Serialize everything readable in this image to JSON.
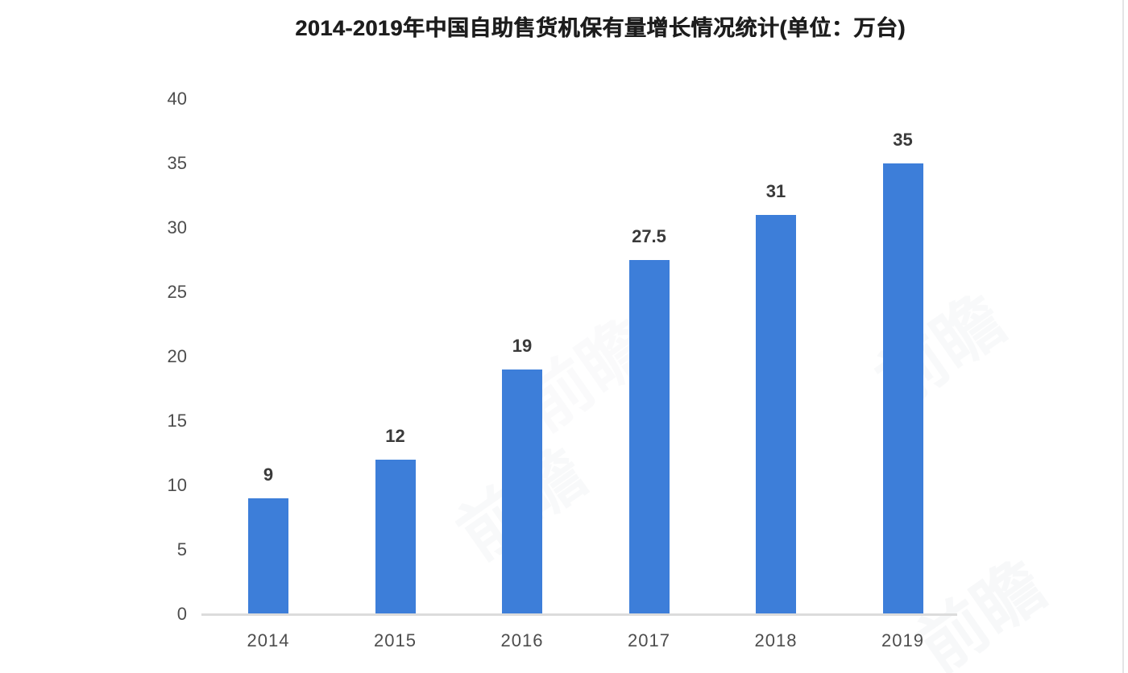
{
  "chart_data": {
    "type": "bar",
    "title": "2014-2019年中国自助售货机保有量增长情况统计(单位：万台)",
    "categories": [
      "2014",
      "2015",
      "2016",
      "2017",
      "2018",
      "2019"
    ],
    "values": [
      9,
      12,
      19,
      27.5,
      31,
      35
    ],
    "data_labels": [
      "9",
      "12",
      "19",
      "27.5",
      "31",
      "35"
    ],
    "y_ticks": [
      0,
      5,
      10,
      15,
      20,
      25,
      30,
      35,
      40
    ],
    "ylim": [
      0,
      40
    ],
    "xlabel": "",
    "ylabel": "",
    "grid": false,
    "legend": "none",
    "unit": "万台"
  },
  "colors": {
    "bar": "#3d7ed9",
    "title_text": "#1d1d1d",
    "tick_text": "#4d4d4d",
    "data_label_text": "#3a3a3a",
    "axis_line": "#dcdcdc",
    "page_edge": "#e4e4e6",
    "watermark": "#8d97a5"
  },
  "watermark": {
    "text": "前瞻"
  }
}
